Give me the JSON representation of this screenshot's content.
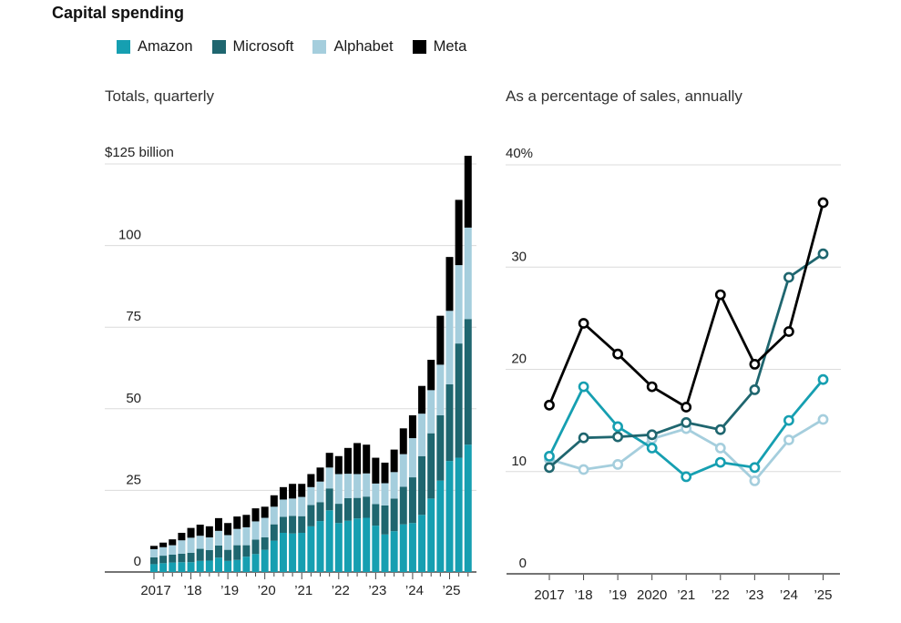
{
  "title": "Capital spending",
  "legend": {
    "items": [
      {
        "label": "Amazon",
        "color": "#169fb1"
      },
      {
        "label": "Microsoft",
        "color": "#1f666f"
      },
      {
        "label": "Alphabet",
        "color": "#a5cedd"
      },
      {
        "label": "Meta",
        "color": "#000000"
      }
    ]
  },
  "colors": {
    "grid": "#dcdcdc",
    "axis": "#222222",
    "tick": "#444444",
    "label": "#222222"
  },
  "chart_data": [
    {
      "type": "bar",
      "stacked": true,
      "title": "Totals, quarterly",
      "unit_label": "$125 billion",
      "ylabel": "billions of dollars",
      "ylim": [
        0,
        130
      ],
      "y_ticks": [
        125,
        100,
        75,
        50,
        25,
        0
      ],
      "grid": true,
      "legend_position": "top",
      "x_year_labels": [
        "2017",
        "’18",
        "’19",
        "’20",
        "’21",
        "’22",
        "’23",
        "’24",
        "’25"
      ],
      "categories": [
        "2017 Q1",
        "2017 Q2",
        "2017 Q3",
        "2017 Q4",
        "2018 Q1",
        "2018 Q2",
        "2018 Q3",
        "2018 Q4",
        "2019 Q1",
        "2019 Q2",
        "2019 Q3",
        "2019 Q4",
        "2020 Q1",
        "2020 Q2",
        "2020 Q3",
        "2020 Q4",
        "2021 Q1",
        "2021 Q2",
        "2021 Q3",
        "2021 Q4",
        "2022 Q1",
        "2022 Q2",
        "2022 Q3",
        "2022 Q4",
        "2023 Q1",
        "2023 Q2",
        "2023 Q3",
        "2023 Q4",
        "2024 Q1",
        "2024 Q2",
        "2024 Q3",
        "2024 Q4",
        "2025 Q1",
        "2025 Q2",
        "2025 Q3"
      ],
      "series": [
        {
          "name": "Amazon",
          "values": [
            2.4,
            2.7,
            2.9,
            3.0,
            3.0,
            3.4,
            3.5,
            4.4,
            3.4,
            3.7,
            4.7,
            5.5,
            6.8,
            9.6,
            12.0,
            11.8,
            12.0,
            14.0,
            15.6,
            18.9,
            15.0,
            15.7,
            16.4,
            16.6,
            14.2,
            11.5,
            12.5,
            14.6,
            15.0,
            17.5,
            22.5,
            28.0,
            34.0,
            35.0,
            39.0
          ]
        },
        {
          "name": "Microsoft",
          "values": [
            2.1,
            2.3,
            2.4,
            2.6,
            2.9,
            3.7,
            3.2,
            3.7,
            3.4,
            4.5,
            3.5,
            4.4,
            3.8,
            5.0,
            4.9,
            5.4,
            5.1,
            6.5,
            5.8,
            6.7,
            5.9,
            6.9,
            6.3,
            6.5,
            6.6,
            8.9,
            10.0,
            11.5,
            14.0,
            18.0,
            20.0,
            20.0,
            23.5,
            35.0,
            38.5
          ]
        },
        {
          "name": "Alphabet",
          "values": [
            2.5,
            2.6,
            2.9,
            4.1,
            4.6,
            4.0,
            3.9,
            4.5,
            4.5,
            5.0,
            5.5,
            5.6,
            6.0,
            5.4,
            5.3,
            5.3,
            5.9,
            5.5,
            6.3,
            6.4,
            9.1,
            7.5,
            7.3,
            7.1,
            6.3,
            6.8,
            8.1,
            10.0,
            12.0,
            13.0,
            13.2,
            15.5,
            22.5,
            24.0,
            28.0
          ]
        },
        {
          "name": "Meta",
          "values": [
            1.0,
            1.4,
            1.8,
            2.3,
            3.0,
            3.4,
            3.4,
            3.9,
            3.7,
            3.8,
            3.8,
            4.0,
            3.4,
            3.5,
            3.8,
            4.5,
            4.0,
            4.0,
            4.3,
            4.5,
            5.5,
            7.9,
            9.5,
            8.8,
            7.9,
            6.3,
            6.9,
            7.9,
            7.0,
            8.5,
            9.3,
            15.0,
            16.5,
            20.0,
            22.0
          ]
        }
      ]
    },
    {
      "type": "line",
      "title": "As a percentage of sales, annually",
      "unit_label": "40%",
      "ylabel": "percent of sales",
      "ylim": [
        0,
        42
      ],
      "y_ticks": [
        40,
        30,
        20,
        10,
        0
      ],
      "grid": true,
      "marker": "open-circle",
      "categories": [
        "2017",
        "’18",
        "’19",
        "2020",
        "’21",
        "’22",
        "’23",
        "’24",
        "’25"
      ],
      "series": [
        {
          "name": "Amazon",
          "values": [
            11.5,
            18.3,
            14.4,
            12.3,
            9.5,
            10.9,
            10.4,
            15.0,
            19.0
          ]
        },
        {
          "name": "Microsoft",
          "values": [
            10.4,
            13.3,
            13.4,
            13.6,
            14.8,
            14.1,
            18.0,
            29.0,
            31.3
          ]
        },
        {
          "name": "Alphabet",
          "values": [
            11.2,
            10.2,
            10.7,
            13.2,
            14.2,
            12.3,
            9.1,
            13.1,
            15.1
          ]
        },
        {
          "name": "Meta",
          "values": [
            16.5,
            24.5,
            21.5,
            18.3,
            16.3,
            27.3,
            20.5,
            23.7,
            36.3
          ]
        }
      ]
    }
  ]
}
